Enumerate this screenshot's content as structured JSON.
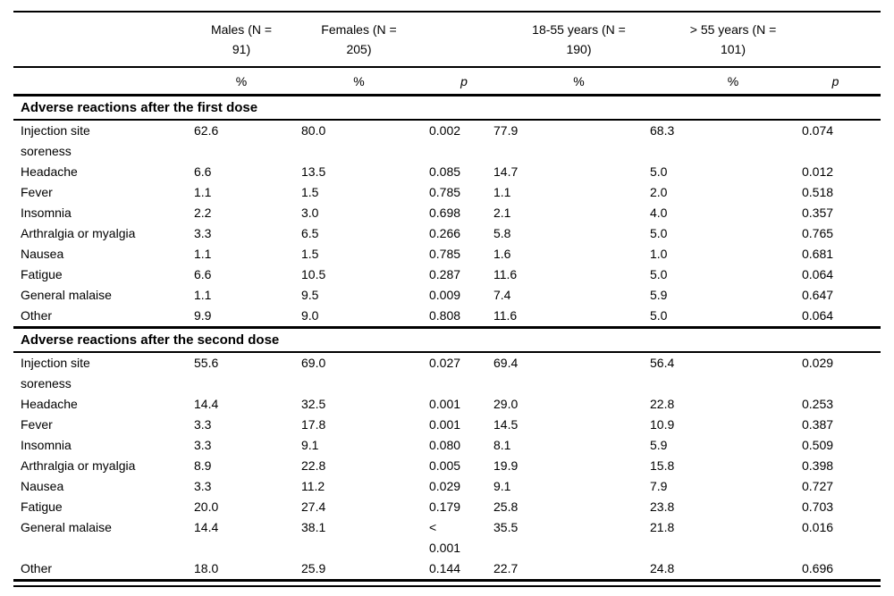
{
  "table": {
    "col_headers": [
      "Males (N = 91)",
      "Females (N = 205)",
      "18-55 years (N = 190)",
      "> 55 years (N = 101)"
    ],
    "sub_headers": [
      "%",
      "%",
      "p",
      "%",
      "%",
      "p"
    ],
    "sections": [
      {
        "title": "Adverse reactions after the first dose",
        "rows": [
          {
            "label": "Injection site soreness",
            "values": [
              "62.6",
              "80.0",
              "0.002",
              "77.9",
              "68.3",
              "0.074"
            ]
          },
          {
            "label": "Headache",
            "values": [
              "6.6",
              "13.5",
              "0.085",
              "14.7",
              "5.0",
              "0.012"
            ]
          },
          {
            "label": "Fever",
            "values": [
              "1.1",
              "1.5",
              "0.785",
              "1.1",
              "2.0",
              "0.518"
            ]
          },
          {
            "label": "Insomnia",
            "values": [
              "2.2",
              "3.0",
              "0.698",
              "2.1",
              "4.0",
              "0.357"
            ]
          },
          {
            "label": "Arthralgia or myalgia",
            "values": [
              "3.3",
              "6.5",
              "0.266",
              "5.8",
              "5.0",
              "0.765"
            ]
          },
          {
            "label": "Nausea",
            "values": [
              "1.1",
              "1.5",
              "0.785",
              "1.6",
              "1.0",
              "0.681"
            ]
          },
          {
            "label": "Fatigue",
            "values": [
              "6.6",
              "10.5",
              "0.287",
              "11.6",
              "5.0",
              "0.064"
            ]
          },
          {
            "label": "General malaise",
            "values": [
              "1.1",
              "9.5",
              "0.009",
              "7.4",
              "5.9",
              "0.647"
            ]
          },
          {
            "label": "Other",
            "values": [
              "9.9",
              "9.0",
              "0.808",
              "11.6",
              "5.0",
              "0.064"
            ]
          }
        ]
      },
      {
        "title": "Adverse reactions after the second dose",
        "rows": [
          {
            "label": "Injection site soreness",
            "values": [
              "55.6",
              "69.0",
              "0.027",
              "69.4",
              "56.4",
              "0.029"
            ]
          },
          {
            "label": "Headache",
            "values": [
              "14.4",
              "32.5",
              "0.001",
              "29.0",
              "22.8",
              "0.253"
            ]
          },
          {
            "label": "Fever",
            "values": [
              "3.3",
              "17.8",
              "0.001",
              "14.5",
              "10.9",
              "0.387"
            ]
          },
          {
            "label": "Insomnia",
            "values": [
              "3.3",
              "9.1",
              "0.080",
              "8.1",
              "5.9",
              "0.509"
            ]
          },
          {
            "label": "Arthralgia or myalgia",
            "values": [
              "8.9",
              "22.8",
              "0.005",
              "19.9",
              "15.8",
              "0.398"
            ]
          },
          {
            "label": "Nausea",
            "values": [
              "3.3",
              "11.2",
              "0.029",
              "9.1",
              "7.9",
              "0.727"
            ]
          },
          {
            "label": "Fatigue",
            "values": [
              "20.0",
              "27.4",
              "0.179",
              "25.8",
              "23.8",
              "0.703"
            ]
          },
          {
            "label": "General malaise",
            "values": [
              "14.4",
              "38.1",
              "< 0.001",
              "35.5",
              "21.8",
              "0.016"
            ]
          },
          {
            "label": "Other",
            "values": [
              "18.0",
              "25.9",
              "0.144",
              "22.7",
              "24.8",
              "0.696"
            ]
          }
        ]
      }
    ]
  }
}
